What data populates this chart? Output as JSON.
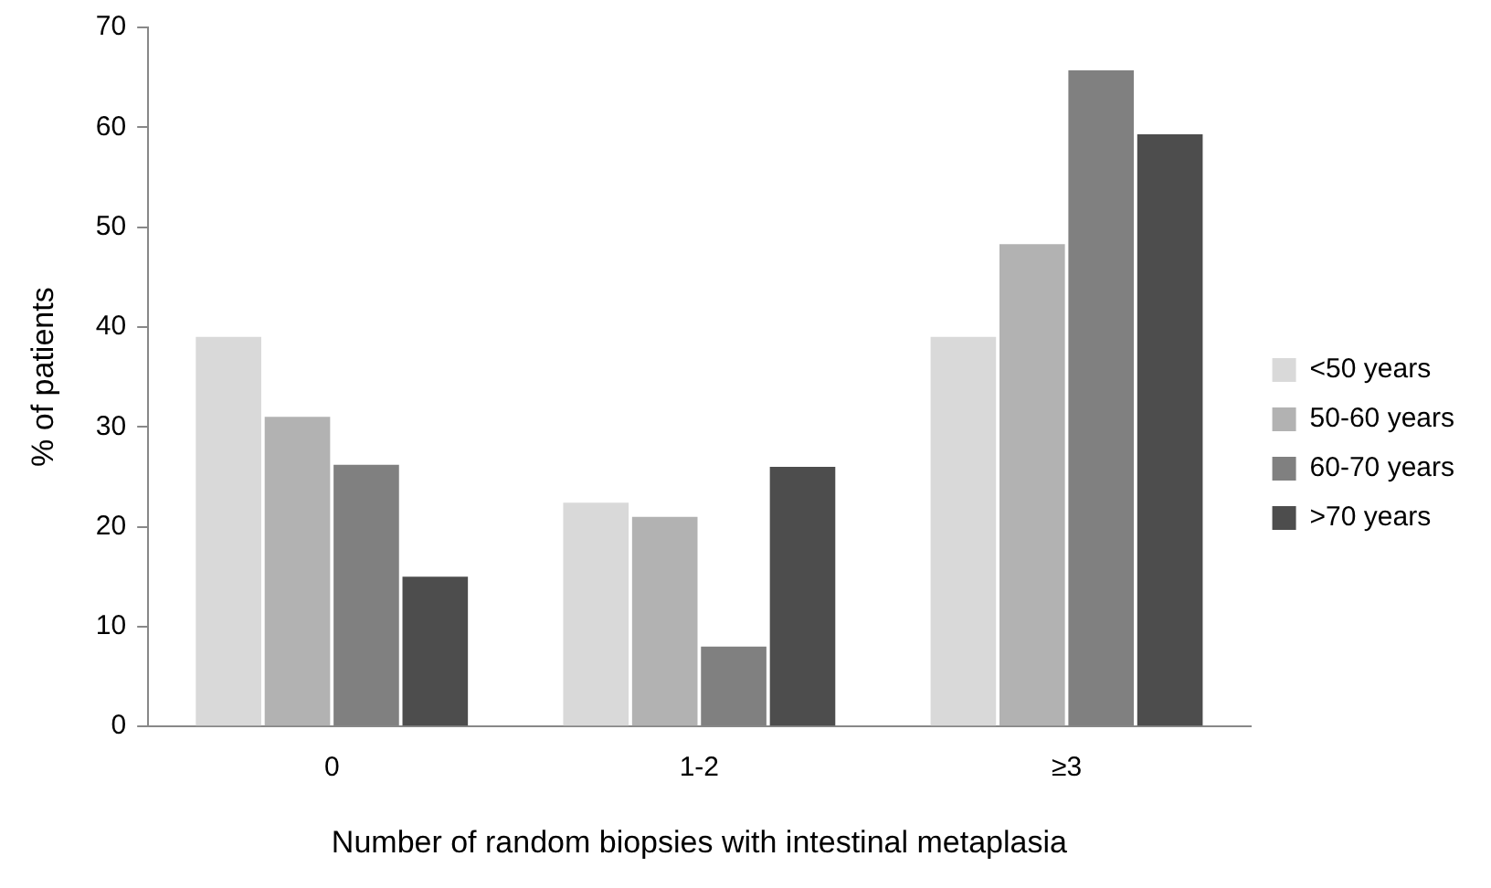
{
  "chart_data": {
    "type": "bar",
    "xlabel": "Number of random biopsies with intestinal metaplasia",
    "ylabel": "% of patients",
    "categories": [
      "0",
      "1-2",
      "≥3"
    ],
    "series": [
      {
        "name": "<50 years",
        "color": "#d9d9d9",
        "values": [
          39,
          22.4,
          39
        ]
      },
      {
        "name": "50-60 years",
        "color": "#b2b2b2",
        "values": [
          31,
          21,
          48.3
        ]
      },
      {
        "name": "60-70 years",
        "color": "#808080",
        "values": [
          26.2,
          8,
          65.7
        ]
      },
      {
        "name": ">70 years",
        "color": "#4d4d4d",
        "values": [
          15,
          26,
          59.3
        ]
      }
    ],
    "ylim": [
      0,
      70
    ],
    "yticks": [
      0,
      10,
      20,
      30,
      40,
      50,
      60,
      70
    ],
    "grid": false,
    "legend": "right"
  }
}
